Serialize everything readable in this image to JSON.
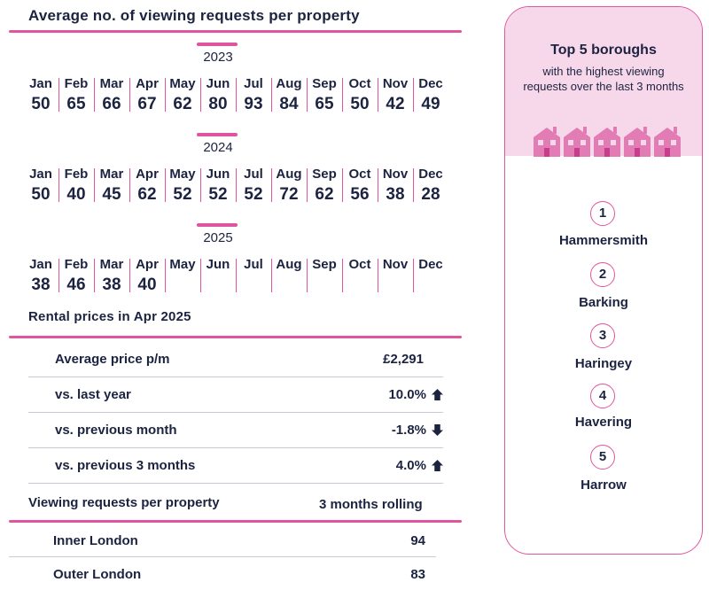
{
  "title": "Average no. of viewing requests per property",
  "months": [
    "Jan",
    "Feb",
    "Mar",
    "Apr",
    "May",
    "Jun",
    "Jul",
    "Aug",
    "Sep",
    "Oct",
    "Nov",
    "Dec"
  ],
  "years": [
    {
      "year": "2023",
      "values": [
        "50",
        "65",
        "66",
        "67",
        "62",
        "80",
        "93",
        "84",
        "65",
        "50",
        "42",
        "49"
      ]
    },
    {
      "year": "2024",
      "values": [
        "50",
        "40",
        "45",
        "62",
        "52",
        "52",
        "52",
        "72",
        "62",
        "56",
        "38",
        "28"
      ]
    },
    {
      "year": "2025",
      "values": [
        "38",
        "46",
        "38",
        "40",
        "",
        "",
        "",
        "",
        "",
        "",
        "",
        ""
      ]
    }
  ],
  "rental": {
    "title": "Rental prices in Apr 2025",
    "rows": [
      {
        "label": "Average price p/m",
        "value": "£2,291",
        "trend": "none"
      },
      {
        "label": "vs. last year",
        "value": "10.0%",
        "trend": "up"
      },
      {
        "label": "vs. previous month",
        "value": "-1.8%",
        "trend": "down"
      },
      {
        "label": "vs. previous 3 months",
        "value": "4.0%",
        "trend": "up"
      }
    ]
  },
  "viewing": {
    "title": "Viewing requests per property",
    "period": "3 months rolling",
    "rows": [
      {
        "label": "Inner London",
        "value": "94"
      },
      {
        "label": "Outer London",
        "value": "83"
      }
    ]
  },
  "boroughs": {
    "title": "Top 5 boroughs",
    "subtitle": "with the highest viewing requests over the last 3 months",
    "items": [
      {
        "rank": "1",
        "name": "Hammersmith"
      },
      {
        "rank": "2",
        "name": "Barking"
      },
      {
        "rank": "3",
        "name": "Haringey"
      },
      {
        "rank": "4",
        "name": "Havering"
      },
      {
        "rank": "5",
        "name": "Harrow"
      }
    ]
  },
  "colors": {
    "accent": "#e0559f",
    "text": "#1c2340",
    "panel_bg": "#f7d8ea"
  }
}
